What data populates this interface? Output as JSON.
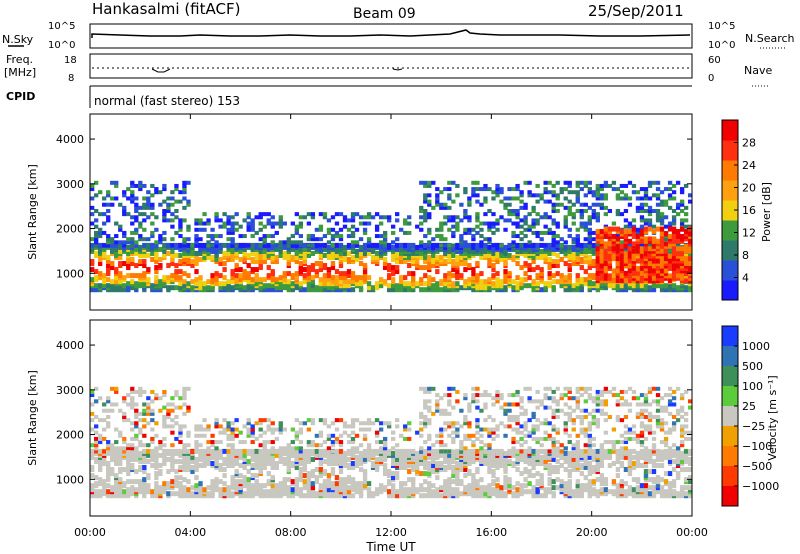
{
  "header": {
    "station": "Hankasalmi (fitACF)",
    "beam": "Beam 09",
    "date": "25/Sep/2011"
  },
  "strip_nsky": {
    "label": "N.Sky",
    "left_ticks": [
      "10^5",
      "10^0"
    ],
    "right_ticks": [
      "10^5",
      "10^0"
    ],
    "right_label": "N.Search"
  },
  "strip_freq": {
    "label_line1": "Freq.",
    "label_line2": "[MHz]",
    "left_ticks": [
      "18",
      "8"
    ],
    "right_ticks": [
      "60",
      "0"
    ],
    "right_label": "Nave"
  },
  "strip_cpid": {
    "label": "CPID",
    "mode_text": "normal (fast stereo) 153"
  },
  "colors": {
    "power": [
      "#1a1aff",
      "#2a4fd8",
      "#2e7a6a",
      "#3d9a3d",
      "#f0d010",
      "#ffa010",
      "#ff7a00",
      "#ff3010",
      "#f00000"
    ],
    "velocity": [
      "#1a3cff",
      "#2f73b5",
      "#3f8f5a",
      "#5ccc3c",
      "#c8c8c0",
      "#f0a000",
      "#ff7a00",
      "#ff3a00",
      "#f00000"
    ],
    "ground_scatter": "#c8c8c0"
  },
  "chart_data": [
    {
      "type": "heatmap",
      "name": "power",
      "ylabel": "Slant Range [km]",
      "xlabel": "",
      "x_ticks": [
        "00:00",
        "04:00",
        "08:00",
        "12:00",
        "16:00",
        "20:00",
        "00:00"
      ],
      "y_ticks": [
        1000,
        2000,
        3000,
        4000
      ],
      "ylim": [
        180,
        4560
      ],
      "colorbar": {
        "label": "Power [dB]",
        "ticks": [
          "4",
          "8",
          "12",
          "16",
          "20",
          "24",
          "28"
        ],
        "range": [
          0,
          30
        ]
      }
    },
    {
      "type": "heatmap",
      "name": "velocity",
      "ylabel": "Slant Range [km]",
      "xlabel": "Time UT",
      "x_ticks": [
        "00:00",
        "04:00",
        "08:00",
        "12:00",
        "16:00",
        "20:00",
        "00:00"
      ],
      "y_ticks": [
        1000,
        2000,
        3000,
        4000
      ],
      "ylim": [
        180,
        4560
      ],
      "colorbar": {
        "label": "Velocity [m s⁻¹]",
        "ticks": [
          "1000",
          "500",
          "100",
          "25",
          "−25",
          "−100",
          "−500",
          "−1000"
        ]
      }
    }
  ]
}
